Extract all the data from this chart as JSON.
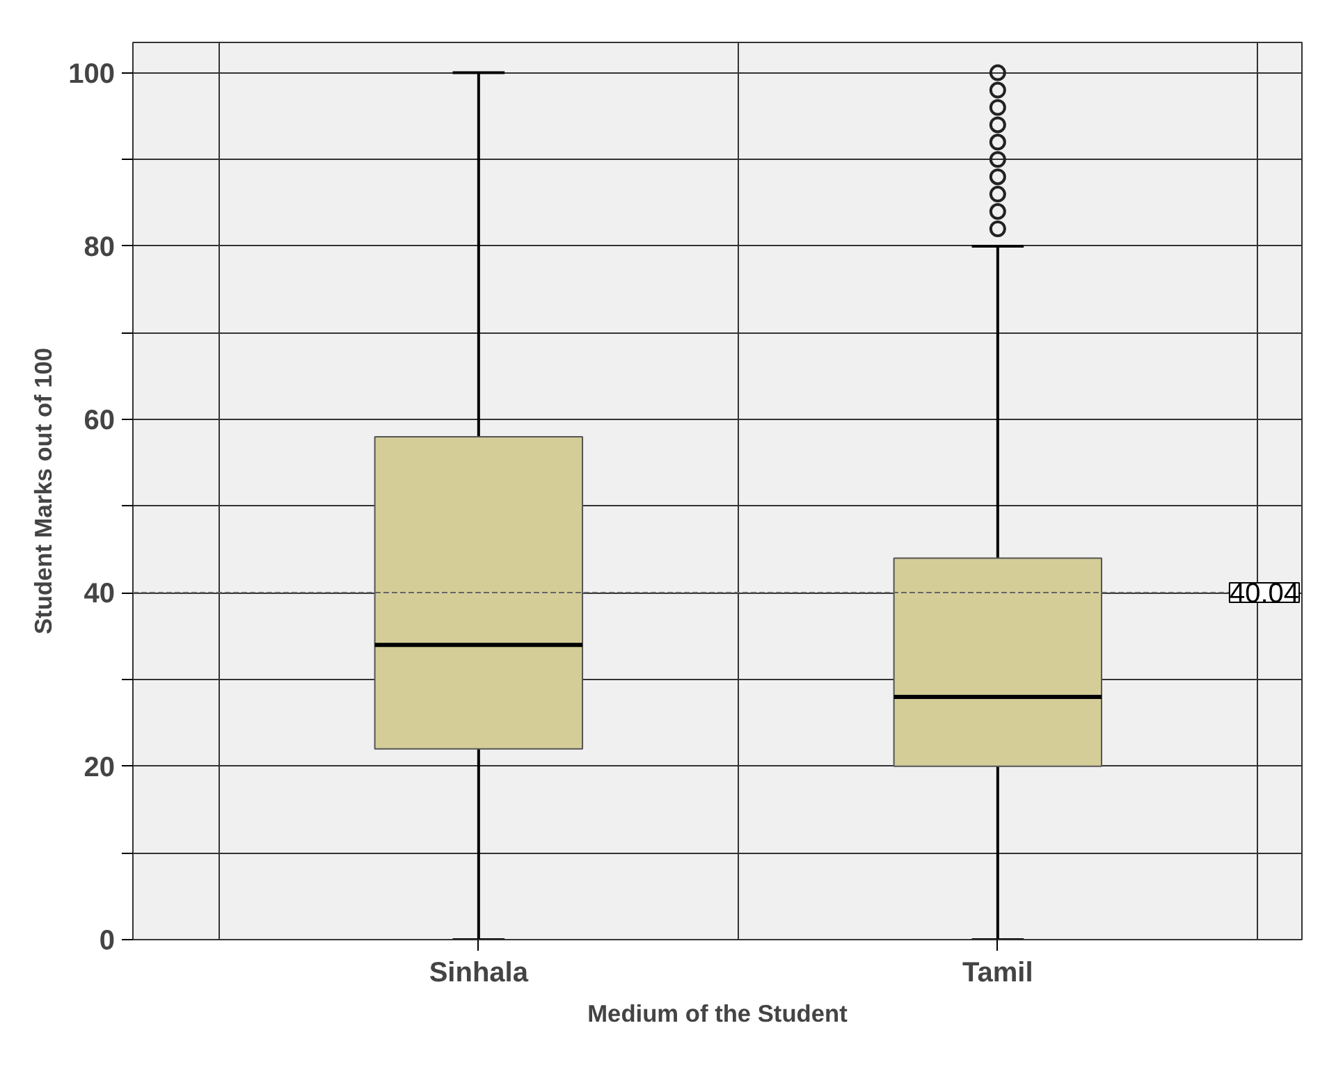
{
  "chart_data": {
    "type": "box",
    "xlabel": "Medium of the Student",
    "ylabel": "Student Marks out of 100",
    "categories": [
      "Sinhala",
      "Tamil"
    ],
    "color": "#d4cd98",
    "boxes": [
      {
        "low": 0,
        "q1": 22,
        "median": 34,
        "q3": 58,
        "high": 100
      },
      {
        "low": 0,
        "q1": 20,
        "median": 28,
        "q3": 44,
        "high": 80,
        "outliers": [
          82,
          84,
          86,
          88,
          90,
          92,
          94,
          96,
          98,
          100
        ]
      }
    ],
    "ylim": [
      0,
      103.5
    ],
    "yticks": [
      0,
      {
        "value": 10,
        "label": null
      },
      20,
      {
        "value": 30,
        "label": null
      },
      40,
      {
        "value": 50,
        "label": null
      },
      60,
      {
        "value": 70,
        "label": null
      },
      80,
      {
        "value": 90,
        "label": null
      },
      100
    ],
    "grid": true,
    "ref_lines": [
      {
        "axis": "y",
        "value": 40.04,
        "label": "40.04",
        "line_style": "dashed"
      }
    ]
  }
}
